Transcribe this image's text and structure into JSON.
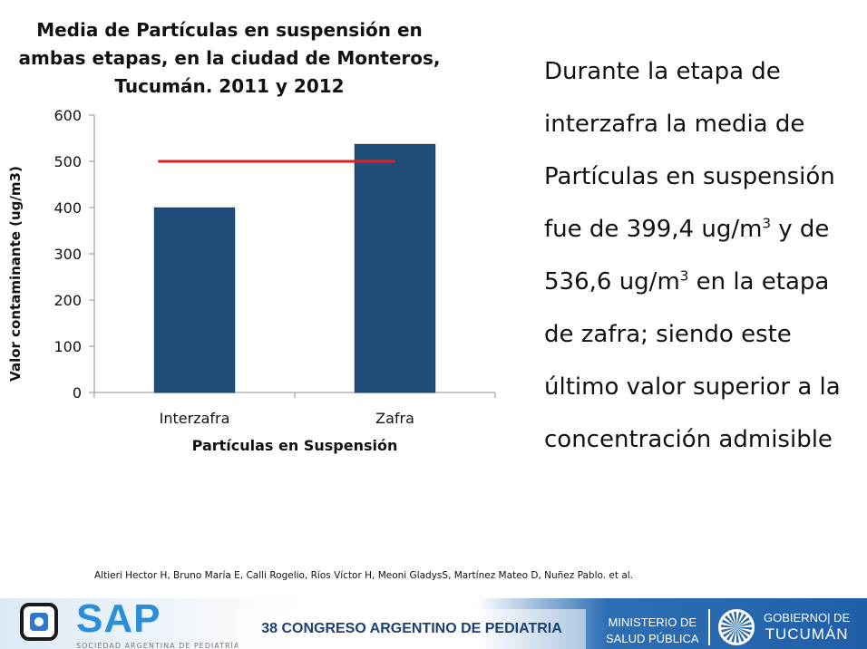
{
  "chart_data": {
    "type": "bar",
    "title_lines": [
      "Media de Partículas en suspensión en",
      "ambas etapas, en la ciudad de Monteros,",
      "Tucumán. 2011 y 2012"
    ],
    "categories": [
      "Interzafra",
      "Zafra"
    ],
    "values": [
      399.4,
      536.6
    ],
    "xlabel": "Partículas en Suspensión",
    "ylabel": "Valor contaminante (ug/m3)",
    "ylim": [
      0,
      600
    ],
    "yticks": [
      0,
      100,
      200,
      300,
      400,
      500,
      600
    ],
    "reference_line": {
      "value": 500,
      "color": "#e02020"
    },
    "bar_color": "#1f4e79",
    "grid": false
  },
  "text": {
    "p1": "Durante la etapa de interzafra la media de Partículas en suspensión fue de 399,4 ug/m",
    "sup1": "3",
    "p2": " y de 536,6 ug/m",
    "sup2": "3",
    "p3": " en la etapa de zafra; siendo este último valor superior a la concentración admisible"
  },
  "citation": "Altieri Hector H, Bruno María E, Calli Rogelio, Ríos Víctor H, Meoni GladysS, Martínez Mateo D, Nuñez Pablo. et al.",
  "footer": {
    "sap_logo_text": "SAP",
    "sap_subtitle": "SOCIEDAD ARGENTINA DE PEDIATRÍA",
    "congress": "38 CONGRESO ARGENTINO DE PEDIATRIA",
    "ministerio_line1": "MINISTERIO DE",
    "ministerio_line2": "SALUD PÚBLICA",
    "gobierno_line1": "GOBIERNO| DE",
    "gobierno_line2": "TUCUMÁN",
    "primary_color": "#1f5fa8"
  }
}
